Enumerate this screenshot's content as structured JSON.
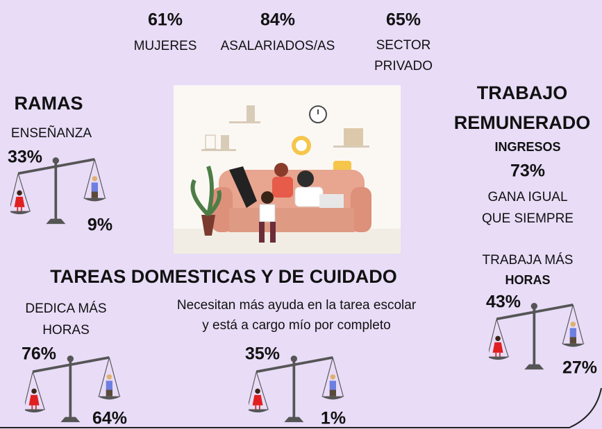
{
  "top_stats": [
    {
      "value": "61%",
      "label": [
        "MUJERES"
      ]
    },
    {
      "value": "84%",
      "label": [
        "ASALARIADOS/AS"
      ]
    },
    {
      "value": "65%",
      "label": [
        "SECTOR",
        "PRIVADO"
      ]
    }
  ],
  "ramas": {
    "title": "RAMAS",
    "subtitle": "ENSEÑANZA",
    "women": "33%",
    "men": "9%"
  },
  "trabajo": {
    "title": [
      "TRABAJO",
      "REMUNERADO"
    ],
    "ingresos": "INGRESOS",
    "ingresos_value": "73%",
    "ingresos_label": [
      "GANA IGUAL",
      "QUE SIEMPRE"
    ],
    "horas_label": [
      "TRABAJA MÁS",
      "HORAS"
    ],
    "women": "43%",
    "men": "27%"
  },
  "tareas": {
    "title": "TAREAS DOMESTICAS Y DE CUIDADO",
    "horas": {
      "label": [
        "DEDICA MÁS",
        "HORAS"
      ],
      "women": "76%",
      "men": "64%"
    },
    "escolar": {
      "label": [
        "Necesitan más ayuda en la tarea escolar",
        "y está a cargo mío por completo"
      ],
      "women": "35%",
      "men": "1%"
    }
  }
}
